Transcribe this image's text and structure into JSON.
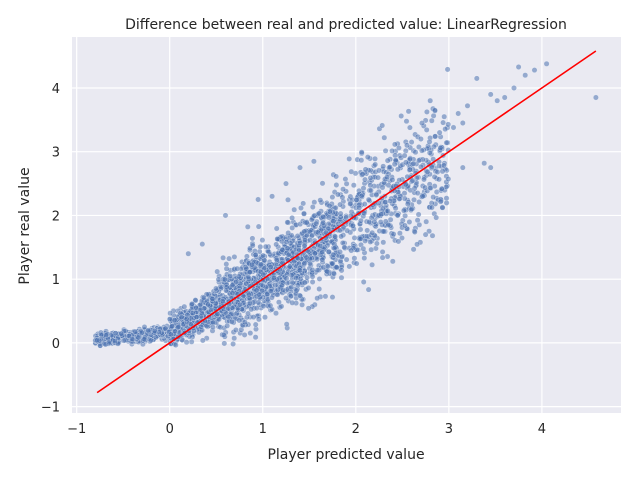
{
  "chart_data": {
    "type": "scatter",
    "title": "Difference between real and predicted value: LinearRegression",
    "xlabel": "Player predicted value",
    "ylabel": "Player real value",
    "xlim": [
      -1.05,
      4.85
    ],
    "ylim": [
      -1.1,
      4.8
    ],
    "xticks": [
      -1,
      0,
      1,
      2,
      3,
      4
    ],
    "yticks": [
      -1,
      0,
      1,
      2,
      3,
      4
    ],
    "grid": true,
    "point_color": "#4c72b0",
    "line_color": "#ff0000",
    "reference_line": {
      "x": [
        -0.78,
        4.58
      ],
      "y": [
        -0.78,
        4.58
      ]
    },
    "scatter_core": {
      "description_free": true,
      "count": 2600,
      "x_range": [
        -0.8,
        4.6
      ]
    },
    "points_sparse": {
      "x": [
        4.58,
        4.05,
        3.92,
        3.82,
        3.75,
        3.7,
        3.6,
        3.45,
        3.3,
        3.2,
        3.15,
        3.1,
        3.05,
        2.95,
        2.9,
        2.85,
        2.8,
        2.7,
        2.55,
        3.52,
        3.45,
        3.38,
        3.15,
        2.75,
        2.6,
        2.45,
        2.35,
        2.3,
        2.2,
        2.1,
        2.05,
        1.95,
        1.85,
        1.7,
        1.55,
        1.4,
        1.25,
        1.1,
        0.95,
        0.6,
        0.35,
        0.2
      ],
      "y": [
        3.85,
        4.38,
        4.28,
        4.2,
        4.33,
        4.0,
        3.85,
        3.9,
        4.15,
        3.72,
        3.45,
        3.6,
        3.38,
        3.55,
        3.3,
        3.65,
        3.8,
        3.2,
        3.1,
        3.8,
        2.75,
        2.82,
        2.75,
        1.7,
        2.1,
        2.0,
        1.85,
        1.75,
        1.9,
        1.6,
        1.78,
        1.45,
        1.35,
        1.2,
        2.85,
        2.75,
        2.5,
        2.3,
        2.25,
        2.0,
        1.55,
        1.4
      ]
    }
  }
}
